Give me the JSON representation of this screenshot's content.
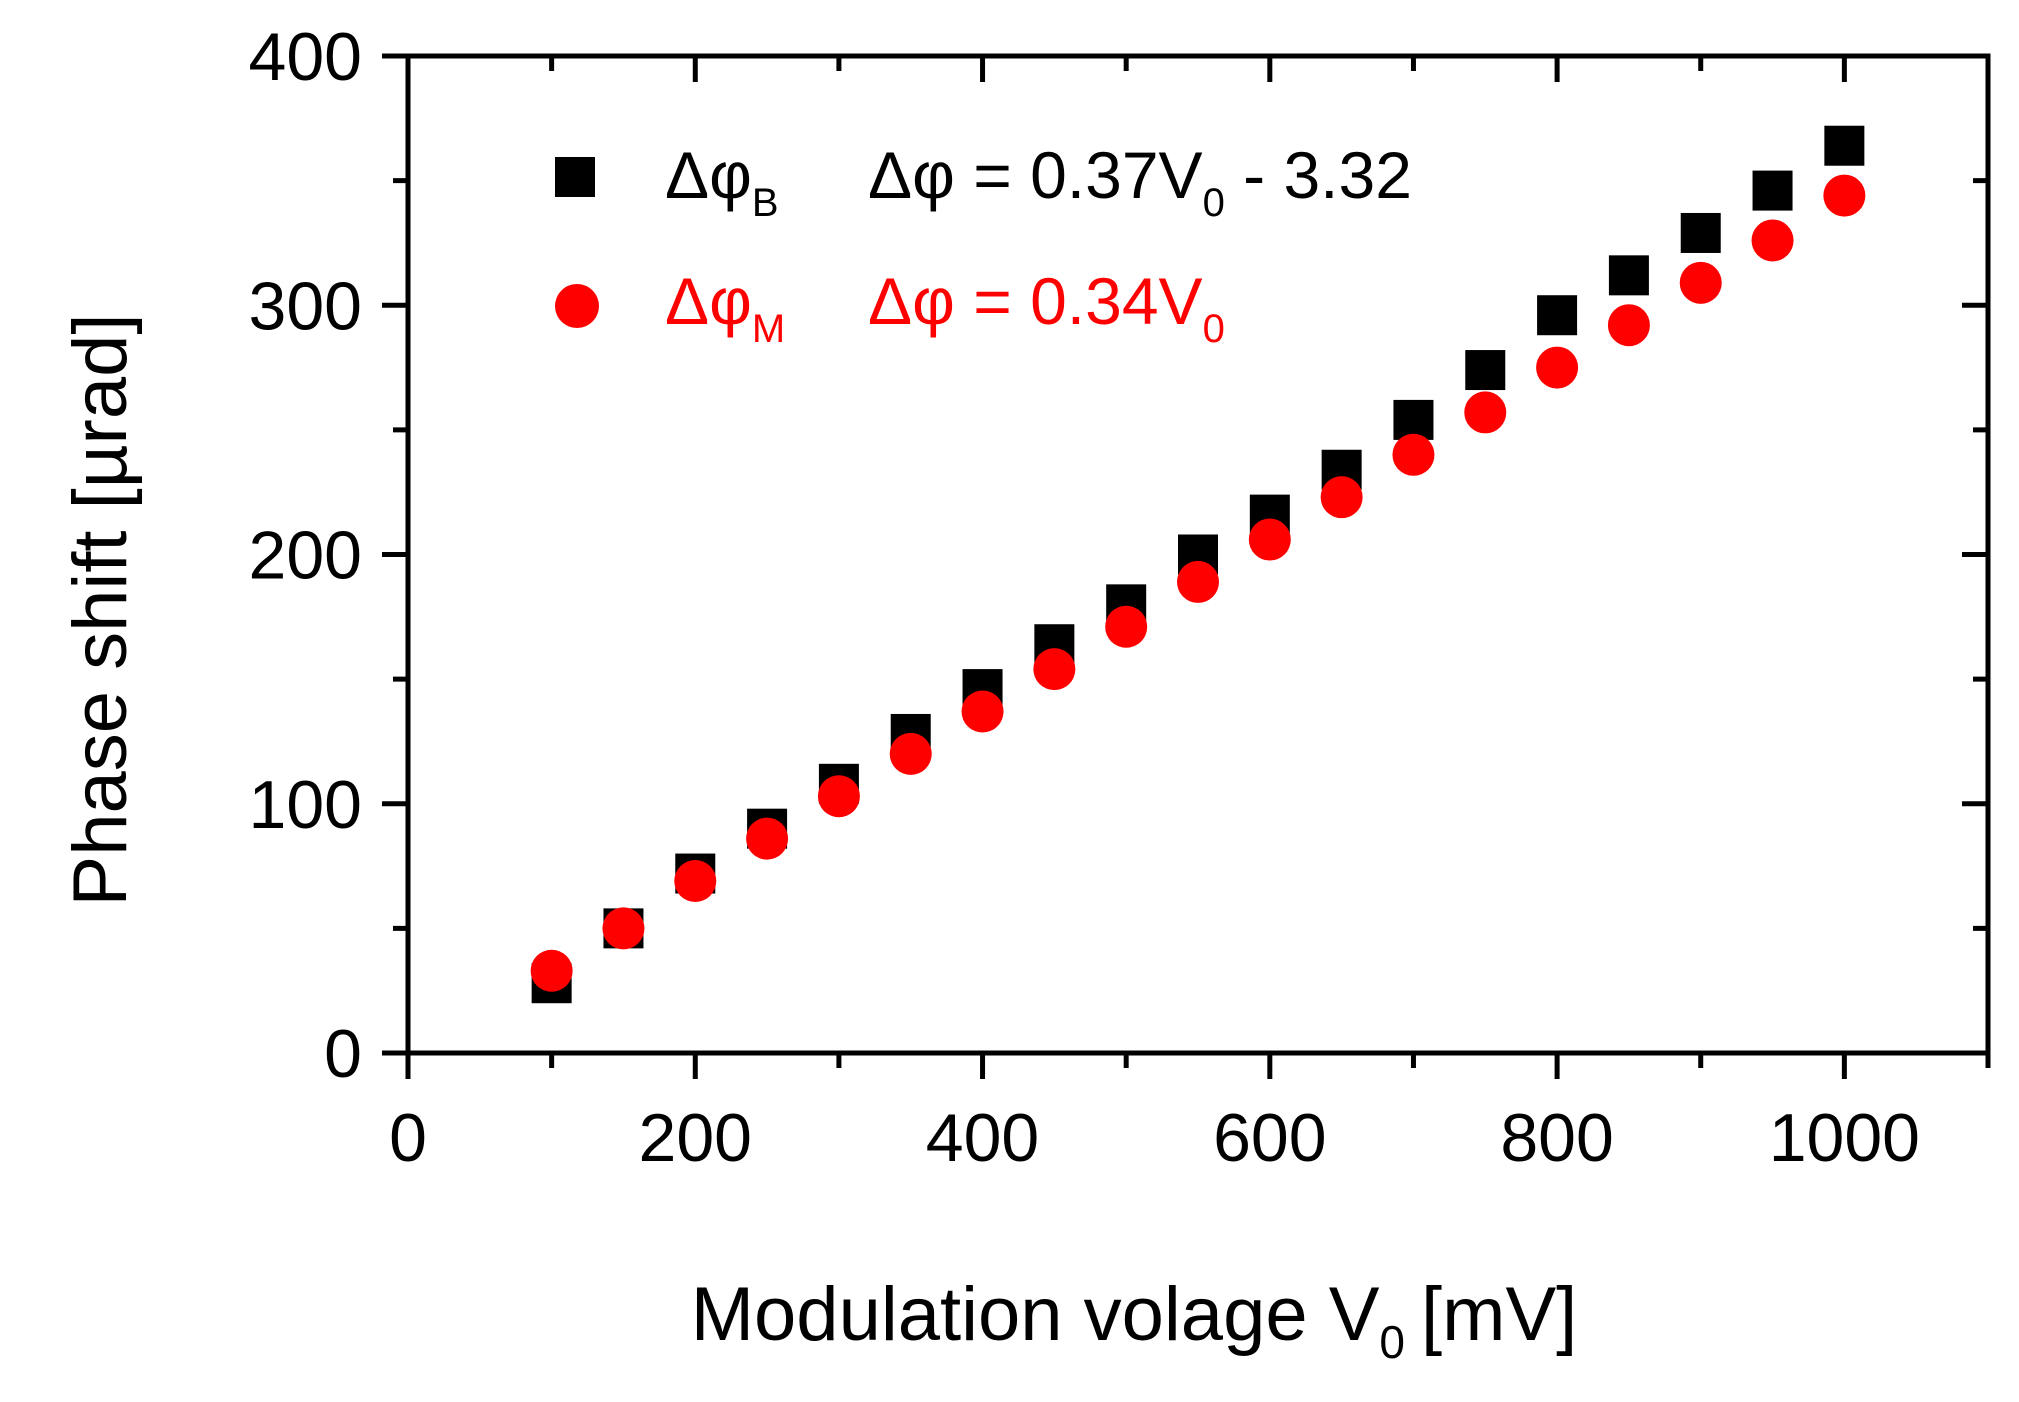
{
  "chart_data": {
    "type": "scatter",
    "xlabel": "Modulation volage V",
    "xlabel_sub": "0",
    "xlabel_unit": "[mV]",
    "ylabel": "Phase shift [µrad]",
    "xlim": [
      0,
      1100
    ],
    "ylim": [
      0,
      400
    ],
    "x_ticks": [
      0,
      200,
      400,
      600,
      800,
      1000
    ],
    "y_ticks": [
      0,
      100,
      200,
      300,
      400
    ],
    "x_ticks_minor": [
      100,
      300,
      500,
      700,
      900,
      1100
    ],
    "y_ticks_minor": [
      50,
      150,
      250,
      350
    ],
    "grid": false,
    "legend_position": "top-left",
    "series": [
      {
        "name": "Δφ",
        "name_sub": "B",
        "marker": "square",
        "color": "#000000",
        "fit": {
          "lhs": "Δφ = 0.37V",
          "sub": "0",
          "rhs": " - 3.32"
        },
        "x": [
          100,
          150,
          200,
          250,
          300,
          350,
          400,
          450,
          500,
          550,
          600,
          650,
          700,
          750,
          800,
          850,
          900,
          950,
          1000
        ],
        "y": [
          28,
          50,
          72,
          90,
          108,
          128,
          146,
          164,
          180,
          200,
          216,
          234,
          254,
          274,
          296,
          312,
          329,
          346,
          364
        ]
      },
      {
        "name": "Δφ",
        "name_sub": "M",
        "marker": "circle",
        "color": "#ff0000",
        "fit": {
          "lhs": "Δφ = 0.34V",
          "sub": "0",
          "rhs": ""
        },
        "x": [
          100,
          150,
          200,
          250,
          300,
          350,
          400,
          450,
          500,
          550,
          600,
          650,
          700,
          750,
          800,
          850,
          900,
          950,
          1000
        ],
        "y": [
          33,
          50,
          69,
          86,
          103,
          120,
          137,
          154,
          171,
          189,
          206,
          223,
          240,
          257,
          275,
          292,
          309,
          326,
          344
        ]
      }
    ]
  }
}
